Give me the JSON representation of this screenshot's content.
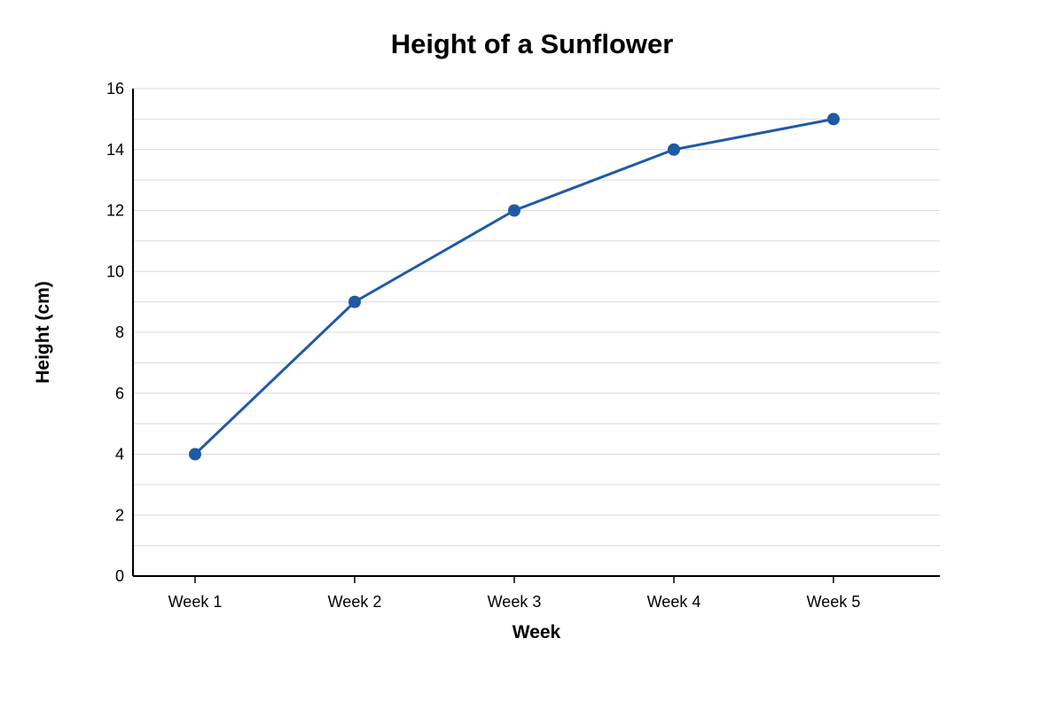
{
  "chart_data": {
    "type": "line",
    "title": "Height of a Sunflower",
    "xlabel": "Week",
    "ylabel": "Height (cm)",
    "categories": [
      "Week 1",
      "Week 2",
      "Week 3",
      "Week 4",
      "Week 5"
    ],
    "series": [
      {
        "values": [
          4,
          9,
          12,
          14,
          15
        ]
      }
    ],
    "ylim": [
      0,
      16
    ],
    "y_ticks": [
      0,
      2,
      4,
      6,
      8,
      10,
      12,
      14,
      16
    ],
    "grid": true,
    "legend": "none",
    "colors": {
      "line": "#1f5aa6",
      "marker": "#1f5aa6",
      "grid": "#d9d9d9",
      "axis": "#000000"
    }
  }
}
